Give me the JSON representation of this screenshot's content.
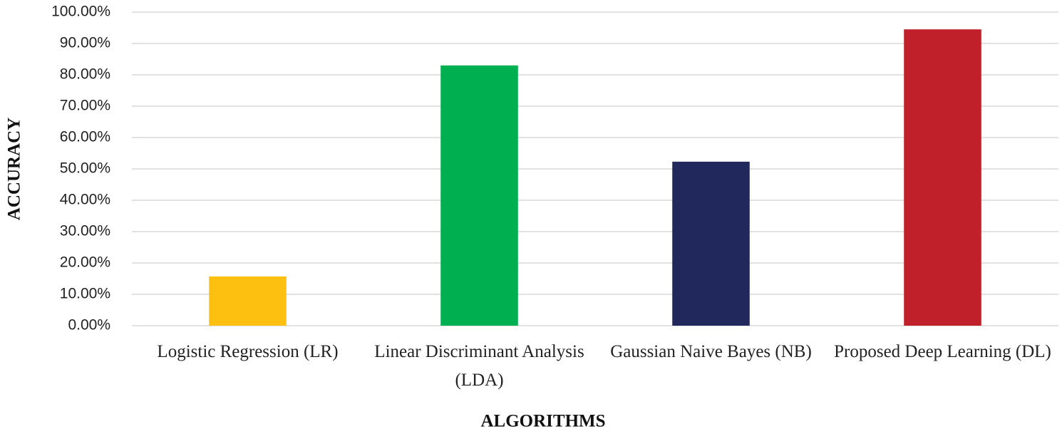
{
  "chart_data": {
    "type": "bar",
    "x_label": "ALGORITHMS",
    "y_label": "ACCURACY",
    "categories": [
      "Logistic Regression (LR)",
      "Linear Discriminant Analysis (LDA)",
      "Gaussian Naive Bayes (NB)",
      "Proposed Deep Learning (DL)"
    ],
    "values": [
      15.7,
      83,
      52.3,
      94.5
    ],
    "colors": [
      "#fdbf10",
      "#00b050",
      "#20285c",
      "#c0202a"
    ],
    "ylim": [
      0,
      100
    ],
    "yticks": [
      {
        "value": 0,
        "label": "0.00%"
      },
      {
        "value": 10,
        "label": "10.00%"
      },
      {
        "value": 20,
        "label": "20.00%"
      },
      {
        "value": 30,
        "label": "30.00%"
      },
      {
        "value": 40,
        "label": "40.00%"
      },
      {
        "value": 50,
        "label": "50.00%"
      },
      {
        "value": 60,
        "label": "60.00%"
      },
      {
        "value": 70,
        "label": "70.00%"
      },
      {
        "value": 80,
        "label": "80.00%"
      },
      {
        "value": 90,
        "label": "90.00%"
      },
      {
        "value": 100,
        "label": "100.00%"
      }
    ],
    "grid": true
  }
}
